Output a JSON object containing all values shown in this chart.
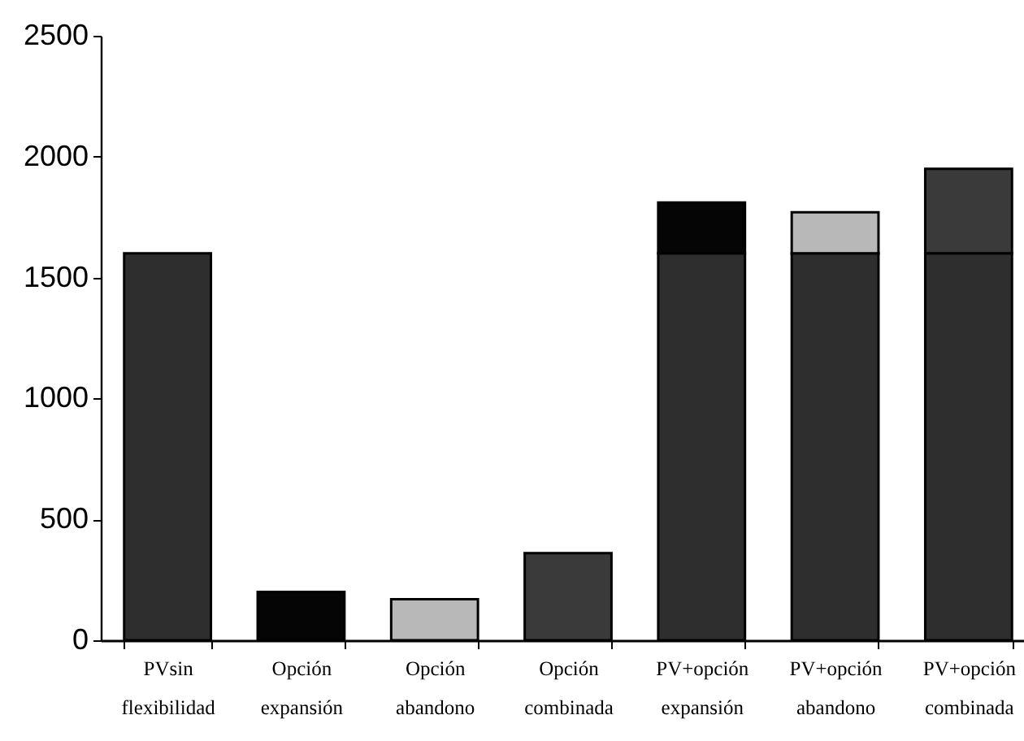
{
  "chart_data": {
    "type": "bar",
    "stacked": true,
    "categories": [
      "PVsin\nflexibilidad",
      "Opción\nexpansión",
      "Opción\nabandono",
      "Opción\ncombinada",
      "PV+opción\nexpansión",
      "PV+opción\nabandono",
      "PV+opción\ncombinada"
    ],
    "series": [
      {
        "color": "#2e2e2e",
        "values": [
          1600,
          null,
          null,
          null,
          1600,
          1600,
          1600
        ]
      },
      {
        "color": "#050505",
        "values": [
          null,
          200,
          null,
          null,
          210,
          null,
          null
        ]
      },
      {
        "color": "#b8b8b8",
        "values": [
          null,
          null,
          170,
          null,
          null,
          170,
          null
        ]
      },
      {
        "color": "#3a3a3a",
        "values": [
          null,
          null,
          null,
          360,
          null,
          null,
          350
        ]
      }
    ],
    "ylim": [
      0,
      2500
    ],
    "yticks": [
      0,
      500,
      1000,
      1500,
      2000,
      2500
    ]
  }
}
